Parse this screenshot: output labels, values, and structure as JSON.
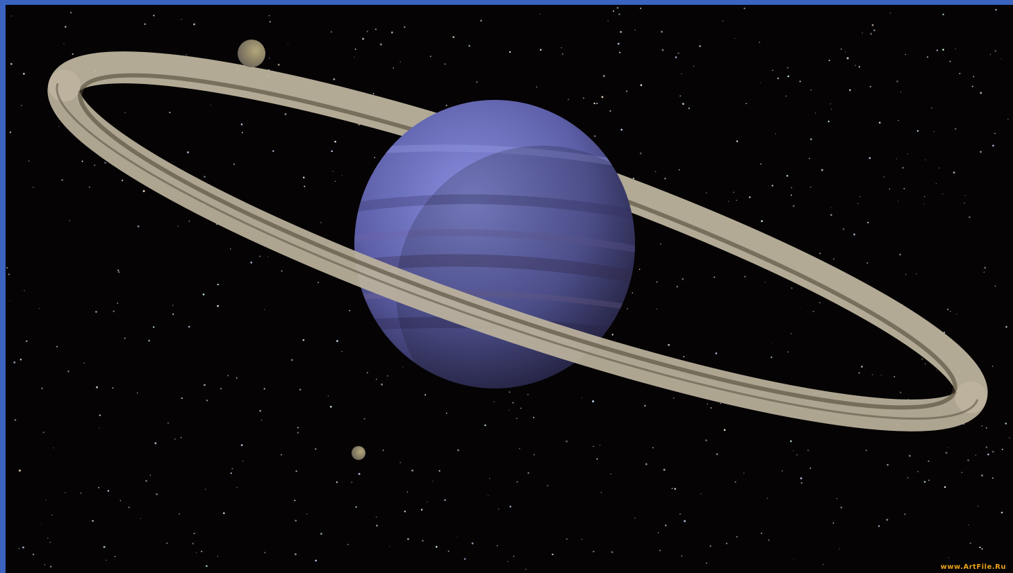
{
  "colors": {
    "frame_border": "#3a64c0",
    "space": "#050304",
    "planet_light": "#8a8fe0",
    "planet_mid": "#5d5fa8",
    "planet_dark": "#1f1d3a",
    "ring_light": "#bdb39d",
    "ring_dark": "#4f4636",
    "moon_dark": "#6a6358",
    "moon_light": "#b3a77a",
    "watermark": "#e8a21c"
  },
  "watermark": {
    "text": "www.ArtFile.Ru"
  }
}
